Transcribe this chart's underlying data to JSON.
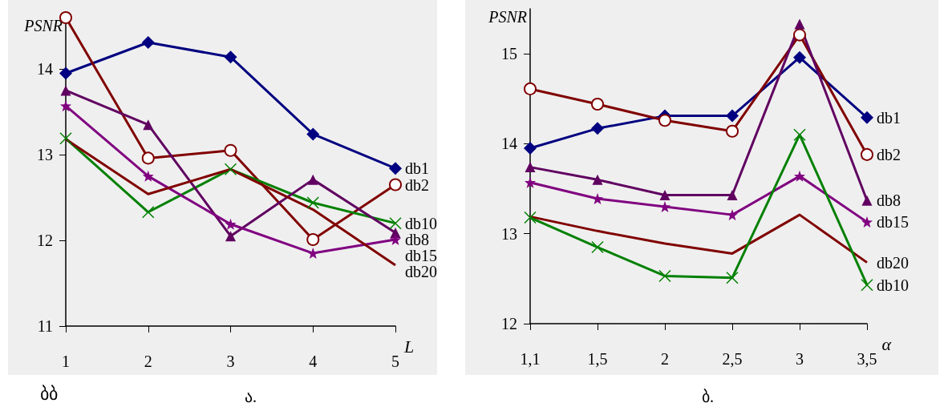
{
  "chart_data": [
    {
      "type": "line",
      "title": "ა.",
      "annotations": [
        "ბბ"
      ],
      "xlabel": "L",
      "ylabel": "PSNR",
      "x": [
        1,
        2,
        3,
        4,
        5
      ],
      "xlim": [
        1,
        5
      ],
      "xticks": [
        1,
        2,
        3,
        4,
        5
      ],
      "ylim": [
        11,
        14.6
      ],
      "yticks": [
        11,
        12,
        13,
        14
      ],
      "legend": false,
      "series": [
        {
          "name": "db1",
          "color": "#000080",
          "marker": "diamond",
          "values": [
            13.95,
            14.31,
            14.14,
            13.24,
            12.84
          ]
        },
        {
          "name": "db2",
          "color": "#800000",
          "marker": "circle",
          "values": [
            14.6,
            12.96,
            13.05,
            12.01,
            12.65
          ]
        },
        {
          "name": "db10",
          "color": "#008000",
          "marker": "cross",
          "values": [
            13.19,
            12.33,
            12.83,
            12.44,
            12.2
          ]
        },
        {
          "name": "db8",
          "color": "#600060",
          "marker": "triangle",
          "values": [
            13.75,
            13.35,
            12.05,
            12.71,
            12.09
          ]
        },
        {
          "name": "db15",
          "color": "#800080",
          "marker": "star",
          "values": [
            13.57,
            12.75,
            12.19,
            11.85,
            12.01
          ]
        },
        {
          "name": "db20",
          "color": "#800000",
          "marker": "none",
          "values": [
            13.18,
            12.54,
            12.83,
            12.36,
            11.71
          ]
        }
      ]
    },
    {
      "type": "line",
      "title": "ბ.",
      "xlabel": "α",
      "ylabel": "PSNR",
      "categories": [
        "1,1",
        "1,5",
        "2",
        "2,5",
        "3",
        "3,5"
      ],
      "ylim": [
        12,
        15.5
      ],
      "yticks": [
        12,
        13,
        14,
        15
      ],
      "legend": false,
      "series": [
        {
          "name": "db1",
          "color": "#000080",
          "marker": "diamond",
          "values": [
            13.95,
            14.17,
            14.31,
            14.31,
            14.96,
            14.29
          ]
        },
        {
          "name": "db2",
          "color": "#800000",
          "marker": "circle",
          "values": [
            14.61,
            14.44,
            14.26,
            14.14,
            15.21,
            13.88
          ]
        },
        {
          "name": "db8",
          "color": "#600060",
          "marker": "triangle",
          "values": [
            13.74,
            13.6,
            13.43,
            13.43,
            15.33,
            13.37
          ]
        },
        {
          "name": "db15",
          "color": "#800080",
          "marker": "star",
          "values": [
            13.57,
            13.39,
            13.3,
            13.21,
            13.64,
            13.13
          ]
        },
        {
          "name": "db20",
          "color": "#800000",
          "marker": "none",
          "values": [
            13.19,
            13.03,
            12.89,
            12.78,
            13.21,
            12.68
          ]
        },
        {
          "name": "db10",
          "color": "#008000",
          "marker": "cross",
          "values": [
            13.18,
            12.85,
            12.53,
            12.51,
            14.1,
            12.43
          ]
        }
      ]
    }
  ]
}
